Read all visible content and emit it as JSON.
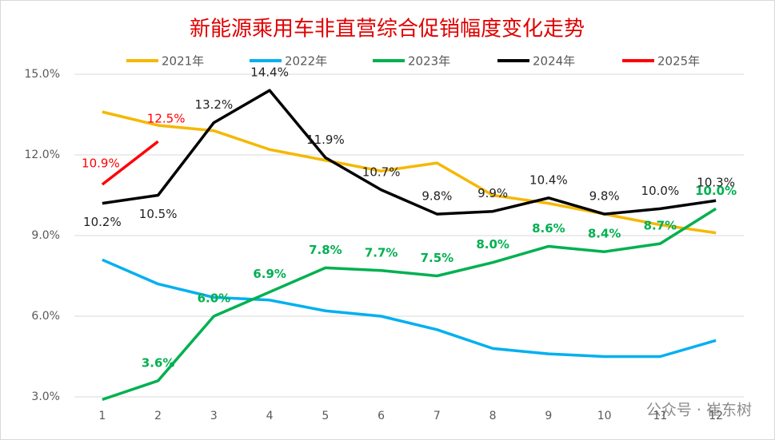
{
  "chart_data": {
    "type": "line",
    "title": "新能源乘用车非直营综合促销幅度变化走势",
    "categories": [
      "1",
      "2",
      "3",
      "4",
      "5",
      "6",
      "7",
      "8",
      "9",
      "10",
      "11",
      "12"
    ],
    "series": [
      {
        "name": "2021年",
        "color": "#f5b800",
        "values": [
          13.6,
          13.1,
          12.9,
          12.2,
          11.8,
          11.4,
          11.7,
          10.5,
          10.2,
          9.8,
          9.4,
          9.1
        ]
      },
      {
        "name": "2022年",
        "color": "#00b0f0",
        "values": [
          8.1,
          7.2,
          6.7,
          6.6,
          6.2,
          6.0,
          5.5,
          4.8,
          4.6,
          4.5,
          4.5,
          5.1
        ]
      },
      {
        "name": "2023年",
        "color": "#00b050",
        "values": [
          2.9,
          3.6,
          6.0,
          6.9,
          7.8,
          7.7,
          7.5,
          8.0,
          8.6,
          8.4,
          8.7,
          10.0
        ],
        "value_labels": [
          null,
          "3.6%",
          "6.0%",
          "6.9%",
          "7.8%",
          "7.7%",
          "7.5%",
          "8.0%",
          "8.6%",
          "8.4%",
          "8.7%",
          "10.0%"
        ]
      },
      {
        "name": "2024年",
        "color": "#000000",
        "values": [
          10.2,
          10.5,
          13.2,
          14.4,
          11.9,
          10.7,
          9.8,
          9.9,
          10.4,
          9.8,
          10.0,
          10.3
        ],
        "value_labels": [
          "10.2%",
          "10.5%",
          "13.2%",
          "14.4%",
          "11.9%",
          "10.7%",
          "9.8%",
          "9.9%",
          "10.4%",
          "9.8%",
          "10.0%",
          "10.3%"
        ]
      },
      {
        "name": "2025年",
        "color": "#ff0000",
        "values": [
          10.9,
          12.5,
          null,
          null,
          null,
          null,
          null,
          null,
          null,
          null,
          null,
          null
        ],
        "value_labels": [
          "10.9%",
          "12.5%",
          null,
          null,
          null,
          null,
          null,
          null,
          null,
          null,
          null,
          null
        ]
      }
    ],
    "ylim": [
      3.0,
      15.0
    ],
    "yticks": [
      {
        "value": 3,
        "label": "3.0%"
      },
      {
        "value": 6,
        "label": "6.0%"
      },
      {
        "value": 9,
        "label": "9.0%"
      },
      {
        "value": 12,
        "label": "12.0%"
      },
      {
        "value": 15,
        "label": "15.0%"
      }
    ],
    "grid": true,
    "legend": "top",
    "watermark": "公众号 · 崔东树"
  }
}
